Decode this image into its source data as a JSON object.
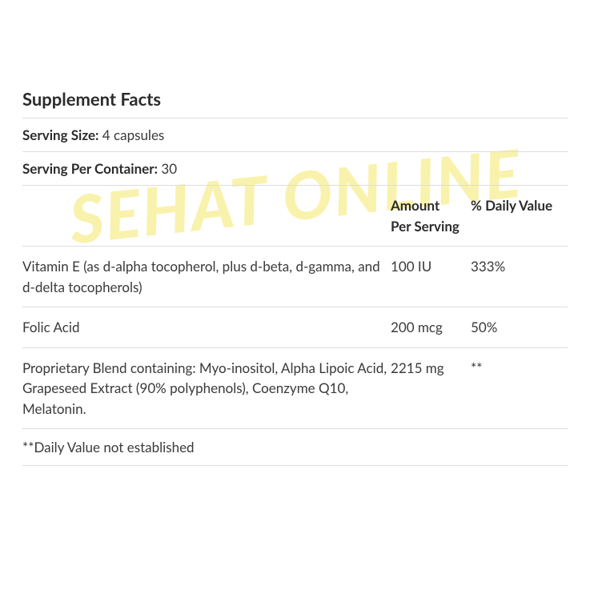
{
  "title": "Supplement Facts",
  "serving_size": {
    "label": "Serving Size:",
    "value": " 4 capsules"
  },
  "serving_per_container": {
    "label": "Serving Per Container:",
    "value": " 30"
  },
  "headers": {
    "name": "",
    "amount": "Amount Per Serving",
    "dv": "% Daily Value"
  },
  "rows": [
    {
      "name": "Vitamin E (as d-alpha tocopherol, plus d-beta, d-gamma, and d-delta tocopherols)",
      "amount": "100 IU",
      "dv": "333%"
    },
    {
      "name": "Folic Acid",
      "amount": "200 mcg",
      "dv": "50%"
    },
    {
      "name": "Proprietary Blend containing: Myo-inositol, Alpha Lipoic Acid, Grapeseed Extract (90% polyphenols), Coenzyme Q10, Melatonin.",
      "amount": "2215 mg",
      "dv": "**"
    }
  ],
  "footnote": "**Daily Value not established",
  "watermark": "SEHAT ONLINE",
  "styling": {
    "background_color": "#ffffff",
    "border_color": "#dddddd",
    "text_color": "#3a3a3a",
    "heading_color": "#2b2b2b",
    "title_fontsize": 22,
    "body_fontsize": 17,
    "watermark_color": "#f5e96a",
    "watermark_opacity": 0.55,
    "col_widths": {
      "name": 460,
      "amount": 100,
      "dv": "flex"
    }
  }
}
